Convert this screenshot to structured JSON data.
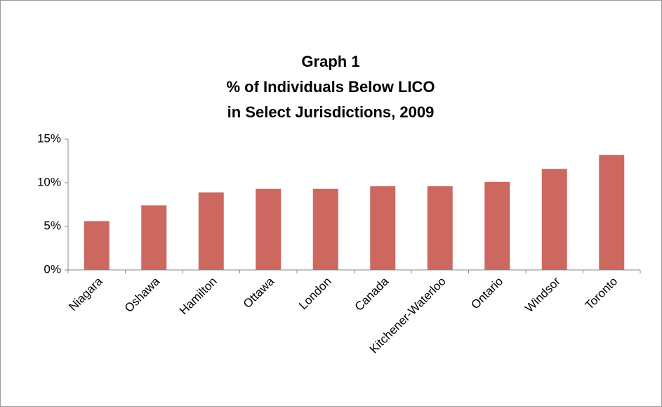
{
  "chart_data": {
    "type": "bar",
    "title": [
      "Graph 1",
      "% of Individuals Below LICO",
      "in Select Jurisdictions, 2009"
    ],
    "categories": [
      "Niagara",
      "Oshawa",
      "Hamilton",
      "Ottawa",
      "London",
      "Canada",
      "Kitchener-Waterloo",
      "Ontario",
      "Windsor",
      "Toronto"
    ],
    "values": [
      5.6,
      7.4,
      8.9,
      9.3,
      9.3,
      9.6,
      9.6,
      10.1,
      11.6,
      13.2
    ],
    "color": "#cd6861",
    "ylim": [
      0,
      15
    ],
    "yticks": [
      {
        "value": 0,
        "label": "0%"
      },
      {
        "value": 5,
        "label": "5%"
      },
      {
        "value": 10,
        "label": "10%"
      },
      {
        "value": 15,
        "label": "15%"
      }
    ],
    "grid": false
  }
}
